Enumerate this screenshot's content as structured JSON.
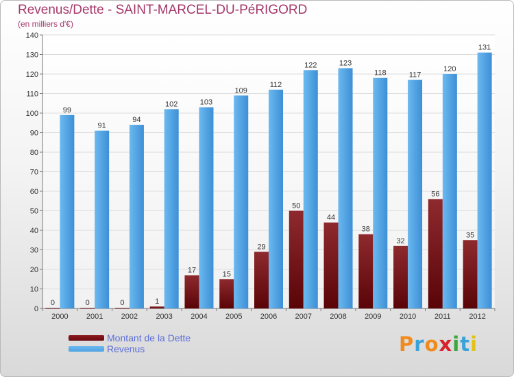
{
  "header": {
    "title": "Revenus/Dette - SAINT-MARCEL-DU-PéRIGORD",
    "subtitle": "(en milliers d'€)"
  },
  "legend": {
    "items": [
      {
        "label": "Montant de la Dette",
        "color": "#6b0a10"
      },
      {
        "label": "Revenus",
        "color": "#4ea3e3"
      }
    ]
  },
  "logo": {
    "letters": [
      {
        "ch": "P",
        "color": "#f08a1c"
      },
      {
        "ch": "r",
        "color": "#39a3d9"
      },
      {
        "ch": "o",
        "color": "#f08a1c"
      },
      {
        "ch": "x",
        "color": "#d6222b"
      },
      {
        "ch": "i",
        "color": "#3aa83a"
      },
      {
        "ch": "t",
        "color": "#39a3d9"
      },
      {
        "ch": "i",
        "color": "#e2c21a"
      }
    ]
  },
  "chart_data": {
    "type": "bar",
    "title": "Revenus/Dette - SAINT-MARCEL-DU-PéRIGORD",
    "ylabel": "(en milliers d'€)",
    "xlabel": "",
    "categories": [
      "2000",
      "2001",
      "2002",
      "2003",
      "2004",
      "2005",
      "2006",
      "2007",
      "2008",
      "2009",
      "2010",
      "2011",
      "2012"
    ],
    "series": [
      {
        "name": "Montant de la Dette",
        "color": "#6b0a10",
        "values": [
          0,
          0,
          0,
          1,
          17,
          15,
          29,
          50,
          44,
          38,
          32,
          56,
          35
        ]
      },
      {
        "name": "Revenus",
        "color": "#4ea3e3",
        "values": [
          99,
          91,
          94,
          102,
          103,
          109,
          112,
          122,
          123,
          118,
          117,
          120,
          131
        ]
      }
    ],
    "ylim": [
      0,
      140
    ],
    "yticks": [
      0,
      10,
      20,
      30,
      40,
      50,
      60,
      70,
      80,
      90,
      100,
      110,
      120,
      130,
      140
    ],
    "grid": true,
    "legend_position": "bottom-left"
  }
}
